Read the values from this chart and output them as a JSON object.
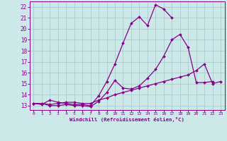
{
  "xlabel": "Windchill (Refroidissement éolien,°C)",
  "background_color": "#cce8e8",
  "grid_color": "#aacccc",
  "line_color": "#880088",
  "xlim": [
    -0.5,
    23.5
  ],
  "ylim": [
    12.6,
    22.5
  ],
  "xticks": [
    0,
    1,
    2,
    3,
    4,
    5,
    6,
    7,
    8,
    9,
    10,
    11,
    12,
    13,
    14,
    15,
    16,
    17,
    18,
    19,
    20,
    21,
    22,
    23
  ],
  "yticks": [
    13,
    14,
    15,
    16,
    17,
    18,
    19,
    20,
    21,
    22
  ],
  "series": [
    {
      "comment": "upper curve - peaks at x=15 ~22.2, x=16 ~21.8, ends x=17 ~21.0",
      "x": [
        0,
        1,
        2,
        3,
        4,
        5,
        6,
        7,
        8,
        9,
        10,
        11,
        12,
        13,
        14,
        15,
        16,
        17
      ],
      "y": [
        13.2,
        13.1,
        13.5,
        13.3,
        13.2,
        13.1,
        13.1,
        13.0,
        13.9,
        15.2,
        16.8,
        18.7,
        20.5,
        21.1,
        20.3,
        22.2,
        21.8,
        21.0
      ]
    },
    {
      "x": [
        0,
        1,
        2,
        3,
        4,
        5,
        6,
        7,
        8,
        9,
        10,
        11,
        12,
        13,
        14,
        15,
        16,
        17,
        18,
        19,
        20,
        21,
        22
      ],
      "y": [
        13.2,
        13.2,
        13.0,
        13.0,
        13.1,
        13.0,
        13.0,
        12.9,
        13.4,
        14.2,
        15.3,
        14.6,
        14.5,
        14.8,
        15.5,
        16.3,
        17.5,
        19.0,
        19.5,
        18.3,
        15.1,
        15.1,
        15.2
      ]
    },
    {
      "x": [
        0,
        1,
        2,
        3,
        4,
        5,
        6,
        7,
        8,
        9,
        10,
        11,
        12,
        13,
        14,
        15,
        16,
        17,
        18,
        19,
        20,
        21,
        22,
        23
      ],
      "y": [
        13.2,
        13.2,
        13.1,
        13.2,
        13.3,
        13.3,
        13.2,
        13.2,
        13.5,
        13.7,
        14.0,
        14.2,
        14.4,
        14.6,
        14.8,
        15.0,
        15.2,
        15.4,
        15.6,
        15.8,
        16.2,
        16.8,
        15.0,
        15.2
      ]
    }
  ]
}
